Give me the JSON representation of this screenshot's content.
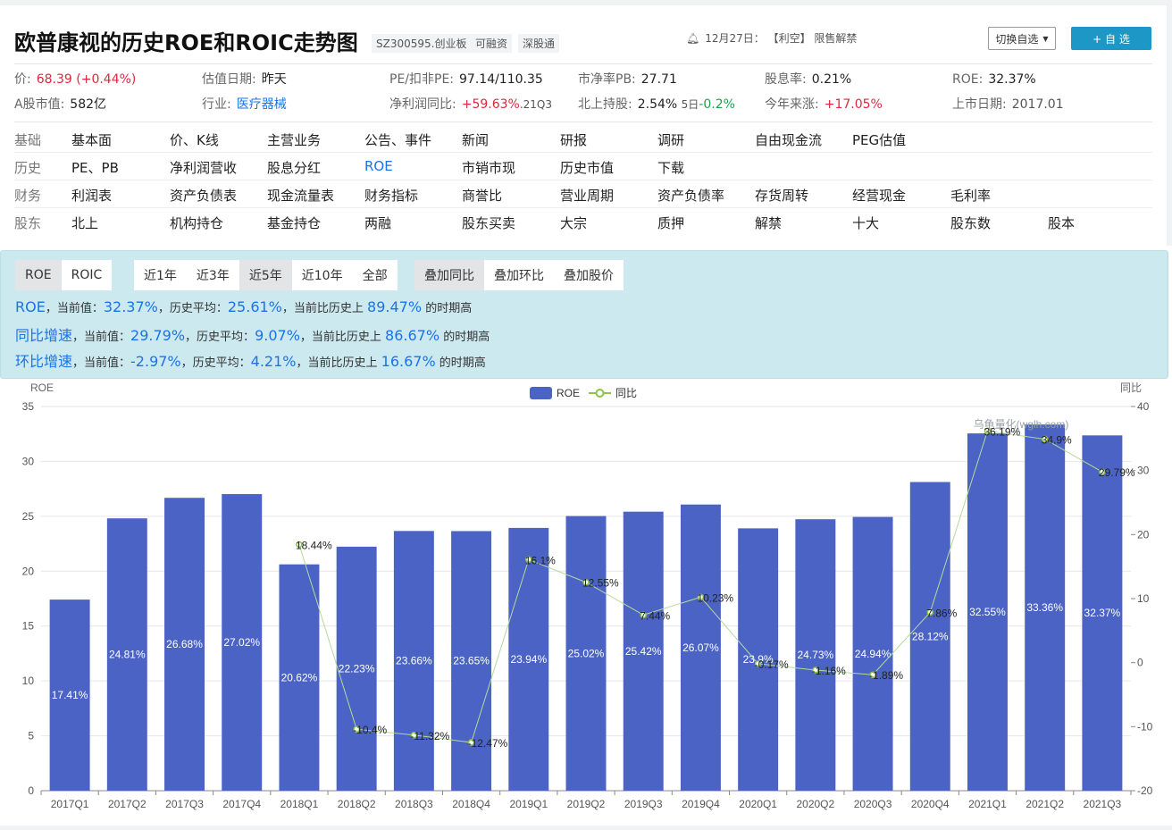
{
  "header": {
    "title": "欧普康视的历史ROE和ROIC走势图",
    "tags": [
      "SZ300595.创业板",
      "可融资",
      "深股通"
    ],
    "notice": "12月27日： 【利空】 限售解禁",
    "switch_label": "切换自选",
    "add_label": "+ 自 选"
  },
  "metrics": {
    "price_label": "价:",
    "price_value": "68.39 (+0.44%)",
    "valuation_date_label": "估值日期:",
    "valuation_date_value": "昨天",
    "pe_label": "PE/扣非PE:",
    "pe_value": "97.14/110.35",
    "pb_label": "市净率PB:",
    "pb_value": "27.71",
    "dividend_label": "股息率:",
    "dividend_value": "0.21%",
    "roe_label": "ROE:",
    "roe_value": "32.37%",
    "mktcap_label": "A股市值:",
    "mktcap_value": "582亿",
    "industry_label": "行业:",
    "industry_value": "医疗器械",
    "profit_growth_label": "净利润同比:",
    "profit_growth_value": "+59.63%",
    "profit_growth_period": ".21Q3",
    "northbound_label": "北上持股:",
    "northbound_value": "2.54%",
    "northbound_5d_label": "5日",
    "northbound_5d_value": "-0.2%",
    "ytd_label": "今年来涨:",
    "ytd_value": "+17.05%",
    "listing_label": "上市日期:",
    "listing_value": "2017.01"
  },
  "nav": [
    {
      "category": "基础",
      "items": [
        "基本面",
        "价、K线",
        "主营业务",
        "公告、事件",
        "新闻",
        "研报",
        "调研",
        "自由现金流",
        "PEG估值"
      ]
    },
    {
      "category": "历史",
      "items": [
        "PE、PB",
        "净利润营收",
        "股息分红",
        "ROE",
        "市销市现",
        "历史市值",
        "下载"
      ]
    },
    {
      "category": "财务",
      "items": [
        "利润表",
        "资产负债表",
        "现金流量表",
        "财务指标",
        "商誉比",
        "营业周期",
        "资产负债率",
        "存货周转",
        "经营现金",
        "毛利率"
      ]
    },
    {
      "category": "股东",
      "items": [
        "北上",
        "机构持仓",
        "基金持仓",
        "两融",
        "股东买卖",
        "大宗",
        "质押",
        "解禁",
        "十大",
        "股东数",
        "股本"
      ]
    }
  ],
  "controls": {
    "metric_buttons": [
      "ROE",
      "ROIC"
    ],
    "range_buttons": [
      "近1年",
      "近3年",
      "近5年",
      "近10年",
      "全部"
    ],
    "overlay_buttons": [
      "叠加同比",
      "叠加环比",
      "叠加股价"
    ]
  },
  "stats": [
    {
      "key": "ROE",
      "current_label": "，当前值：",
      "current": "32.37%",
      "avg_label": "，历史平均：",
      "avg": "25.61%",
      "pct_label": "，当前比历史上",
      "pct": "89.47%",
      "suffix": "的时期高"
    },
    {
      "key": "同比增速",
      "current_label": "，当前值：",
      "current": "29.79%",
      "avg_label": "，历史平均：",
      "avg": "9.07%",
      "pct_label": "，当前比历史上",
      "pct": "86.67%",
      "suffix": "的时期高"
    },
    {
      "key": "环比增速",
      "current_label": "，当前值：",
      "current": "-2.97%",
      "avg_label": "，历史平均：",
      "avg": "4.21%",
      "pct_label": "，当前比历史上",
      "pct": "16.67%",
      "suffix": "的时期高"
    }
  ],
  "chart_data": {
    "type": "bar",
    "y_left_label": "ROE",
    "y_right_label": "同比",
    "watermark": "乌龟量化(wglh.com)",
    "categories": [
      "2017Q1",
      "2017Q2",
      "2017Q3",
      "2017Q4",
      "2018Q1",
      "2018Q2",
      "2018Q3",
      "2018Q4",
      "2019Q1",
      "2019Q2",
      "2019Q3",
      "2019Q4",
      "2020Q1",
      "2020Q2",
      "2020Q3",
      "2020Q4",
      "2021Q1",
      "2021Q2",
      "2021Q3"
    ],
    "series": [
      {
        "name": "ROE",
        "type": "bar",
        "axis": "left",
        "color": "#4a63c4",
        "values": [
          17.41,
          24.81,
          26.68,
          27.02,
          20.62,
          22.23,
          23.66,
          23.65,
          23.94,
          25.02,
          25.42,
          26.07,
          23.9,
          24.73,
          24.94,
          28.12,
          32.55,
          33.36,
          32.37
        ],
        "labels": [
          "17.41%",
          "24.81%",
          "26.68%",
          "27.02%",
          "20.62%",
          "22.23%",
          "23.66%",
          "23.65%",
          "23.94%",
          "25.02%",
          "25.42%",
          "26.07%",
          "23.9%",
          "24.73%",
          "24.94%",
          "28.12%",
          "32.55%",
          "33.36%",
          "32.37%"
        ]
      },
      {
        "name": "同比",
        "type": "line",
        "axis": "right",
        "color": "#8bc34a",
        "values": [
          null,
          null,
          null,
          null,
          18.44,
          -10.4,
          -11.32,
          -12.47,
          16.1,
          12.55,
          7.44,
          10.23,
          -0.17,
          -1.16,
          -1.89,
          7.86,
          36.19,
          34.9,
          29.79
        ],
        "labels": [
          null,
          null,
          null,
          null,
          "18.44%",
          "-10.4%",
          "-11.32%",
          "-12.47%",
          "16.1%",
          "12.55%",
          "7.44%",
          "10.23%",
          "-0.17%",
          "-1.16%",
          "-1.89%",
          "7.86%",
          "36.19%",
          "34.9%",
          "29.79%"
        ]
      }
    ],
    "ylim_left": [
      0,
      35
    ],
    "yticks_left": [
      0,
      5,
      10,
      15,
      20,
      25,
      30,
      35
    ],
    "ylim_right": [
      -20,
      40
    ],
    "yticks_right": [
      -20,
      -10,
      0,
      10,
      20,
      30,
      40
    ],
    "grid": true,
    "legend_position": "top-center"
  }
}
